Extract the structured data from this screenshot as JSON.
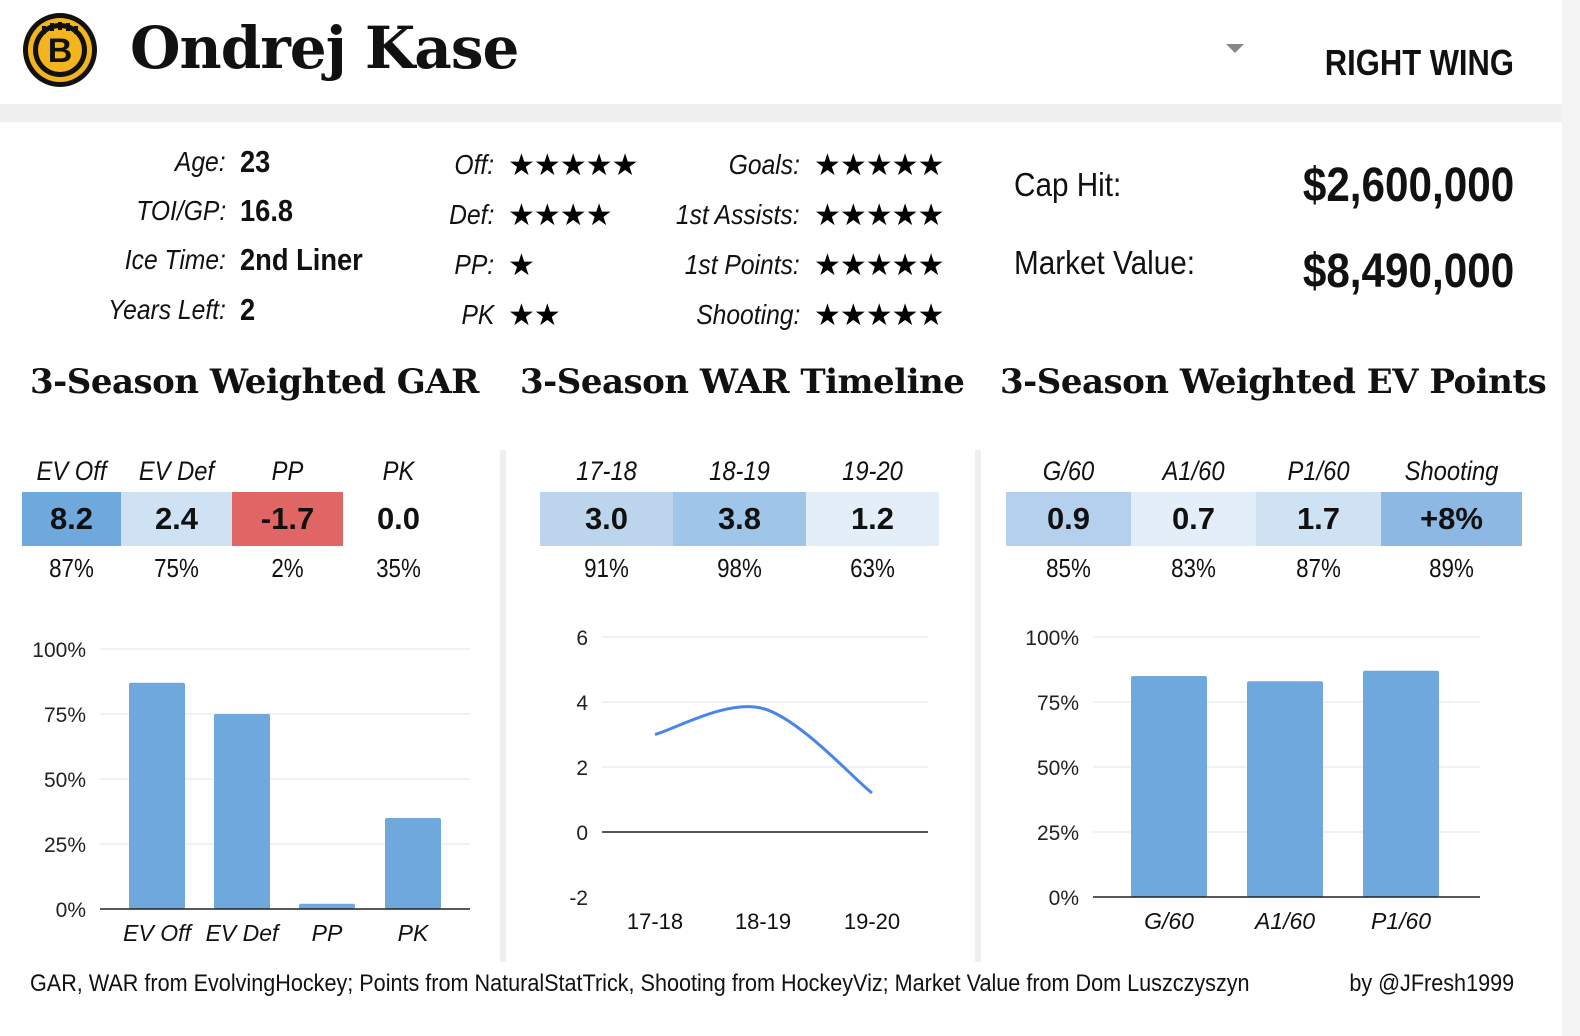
{
  "header": {
    "name": "Ondrej Kase",
    "position": "RIGHT WING",
    "logo_letter": "B"
  },
  "bio": [
    {
      "label": "Age:",
      "value": "23"
    },
    {
      "label": "TOI/GP:",
      "value": "16.8"
    },
    {
      "label": "Ice Time:",
      "value": "2nd Liner"
    },
    {
      "label": "Years Left:",
      "value": "2"
    }
  ],
  "ratings_a": [
    {
      "label": "Off:",
      "stars": "★★★★★"
    },
    {
      "label": "Def:",
      "stars": "★★★★"
    },
    {
      "label": "PP:",
      "stars": "★"
    },
    {
      "label": "PK",
      "stars": "★★"
    }
  ],
  "ratings_b": [
    {
      "label": "Goals:",
      "stars": "★★★★★"
    },
    {
      "label": "1st Assists:",
      "stars": "★★★★★"
    },
    {
      "label": "1st Points:",
      "stars": "★★★★★"
    },
    {
      "label": "Shooting:",
      "stars": "★★★★★"
    }
  ],
  "contract": {
    "cap_label": "Cap Hit:",
    "cap_value": "$2,600,000",
    "market_label": "Market Value:",
    "market_value": "$8,490,000"
  },
  "sections": {
    "gar": {
      "title": "3-Season Weighted GAR",
      "cols": [
        {
          "head": "EV Off",
          "value": "8.2",
          "pct": "87%",
          "color": "#6fa8dc"
        },
        {
          "head": "EV Def",
          "value": "2.4",
          "pct": "75%",
          "color": "#cfe2f3"
        },
        {
          "head": "PP",
          "value": "-1.7",
          "pct": "2%",
          "color": "#e06666"
        },
        {
          "head": "PK",
          "value": "0.0",
          "pct": "35%",
          "color": "#ffffff"
        }
      ]
    },
    "war": {
      "title": "3-Season WAR Timeline",
      "cols": [
        {
          "head": "17-18",
          "value": "3.0",
          "pct": "91%",
          "color": "#bcd5ec"
        },
        {
          "head": "18-19",
          "value": "3.8",
          "pct": "98%",
          "color": "#9fc5e8"
        },
        {
          "head": "19-20",
          "value": "1.2",
          "pct": "63%",
          "color": "#e3eef9"
        }
      ]
    },
    "ev": {
      "title": "3-Season Weighted EV Points",
      "cols": [
        {
          "head": "G/60",
          "value": "0.9",
          "pct": "85%",
          "color": "#b4d0ec"
        },
        {
          "head": "A1/60",
          "value": "0.7",
          "pct": "83%",
          "color": "#e3eef9"
        },
        {
          "head": "P1/60",
          "value": "1.7",
          "pct": "87%",
          "color": "#cfe2f3"
        },
        {
          "head": "Shooting",
          "value": "+8%",
          "pct": "89%",
          "color": "#8cb8e3"
        }
      ]
    }
  },
  "chart_data": [
    {
      "type": "bar",
      "title": "3-Season Weighted GAR percentile",
      "categories": [
        "EV Off",
        "EV Def",
        "PP",
        "PK"
      ],
      "values": [
        87,
        75,
        2,
        35
      ],
      "ylim": [
        0,
        100
      ],
      "yticks": [
        "0%",
        "25%",
        "50%",
        "75%",
        "100%"
      ],
      "bar_color": "#6fa8dc"
    },
    {
      "type": "line",
      "title": "3-Season WAR Timeline",
      "categories": [
        "17-18",
        "18-19",
        "19-20"
      ],
      "values": [
        3.0,
        3.8,
        1.2
      ],
      "ylim": [
        -2,
        6
      ],
      "yticks": [
        "-2",
        "0",
        "2",
        "4",
        "6"
      ],
      "line_color": "#4a86e8"
    },
    {
      "type": "bar",
      "title": "3-Season Weighted EV Points percentile",
      "categories": [
        "G/60",
        "A1/60",
        "P1/60"
      ],
      "values": [
        85,
        83,
        87
      ],
      "ylim": [
        0,
        100
      ],
      "yticks": [
        "0%",
        "25%",
        "50%",
        "75%",
        "100%"
      ],
      "bar_color": "#6fa8dc"
    }
  ],
  "footer": {
    "sources": "GAR, WAR from EvolvingHockey; Points from NaturalStatTrick, Shooting from HockeyViz; Market Value from Dom Luszczyszyn",
    "credit": "by @JFresh1999"
  }
}
